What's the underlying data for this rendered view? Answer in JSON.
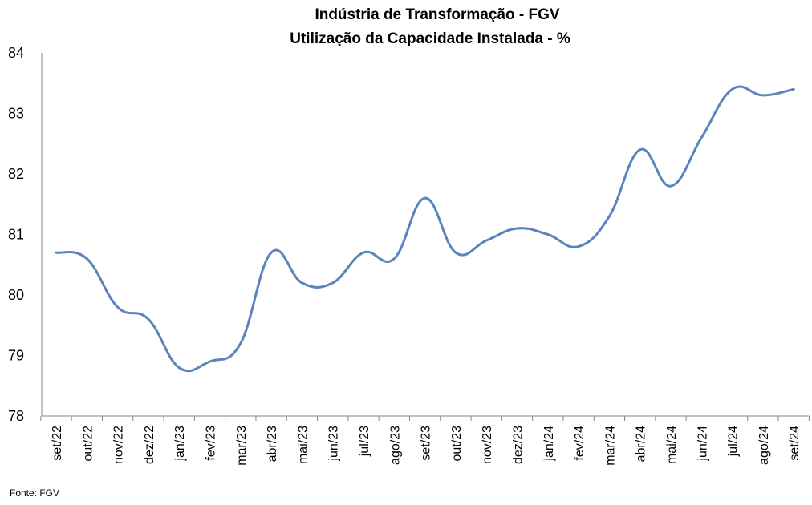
{
  "chart_data": {
    "type": "line",
    "title": "Indústria de Transformação - FGV",
    "subtitle": "Utilização da Capacidade Instalada - %",
    "xlabel": "",
    "ylabel": "",
    "categories": [
      "set/22",
      "out/22",
      "nov/22",
      "dez/22",
      "jan/23",
      "fev/23",
      "mar/23",
      "abr/23",
      "mai/23",
      "jun/23",
      "jul/23",
      "ago/23",
      "set/23",
      "out/23",
      "nov/23",
      "dez/23",
      "jan/24",
      "fev/24",
      "mar/24",
      "abr/24",
      "mai/24",
      "jun/24",
      "jul/24",
      "ago/24",
      "set/24"
    ],
    "series": [
      {
        "values": [
          80.7,
          80.6,
          79.8,
          79.6,
          78.8,
          78.9,
          79.2,
          80.7,
          80.2,
          80.2,
          80.7,
          80.6,
          81.6,
          80.7,
          80.9,
          81.1,
          81.0,
          80.8,
          81.3,
          82.4,
          81.8,
          82.6,
          83.4,
          83.3,
          83.4
        ],
        "color": "#5B83BD"
      }
    ],
    "ylim": [
      78,
      84
    ],
    "yticks": [
      "78",
      "79",
      "80",
      "81",
      "82",
      "83",
      "84"
    ],
    "grid": false,
    "legend": "none",
    "source": "Fonte: FGV"
  }
}
